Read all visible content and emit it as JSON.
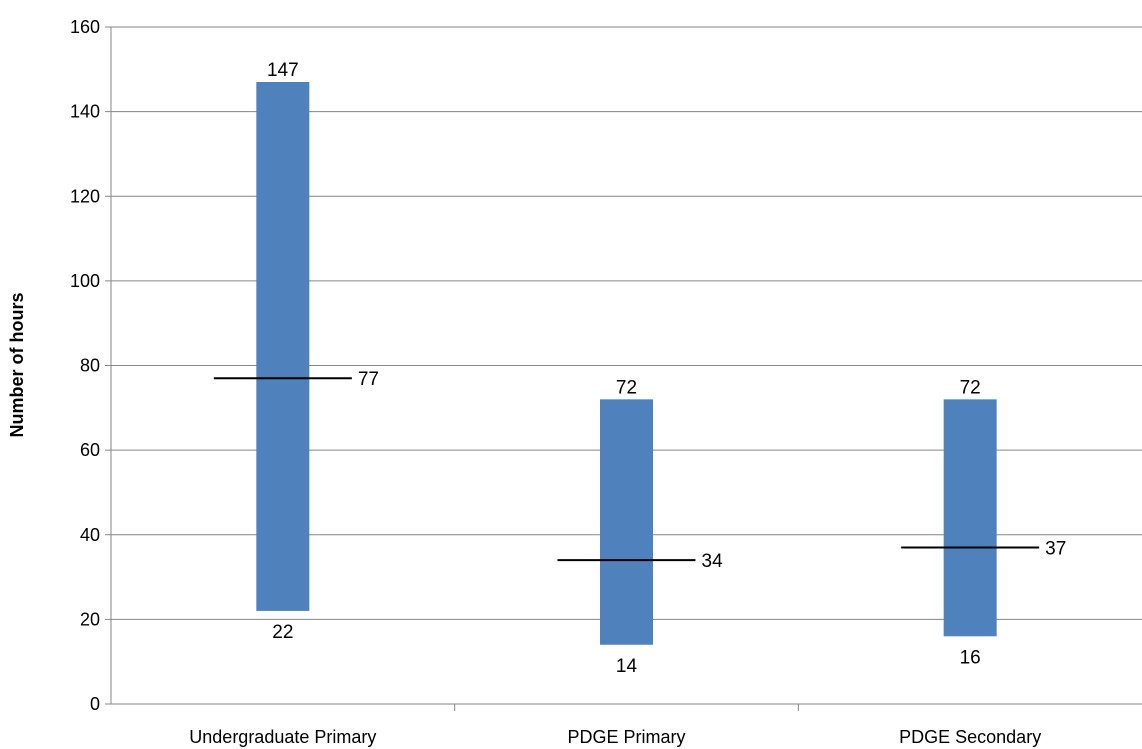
{
  "chart_data": {
    "type": "bar",
    "subtype": "floating-range-with-mean-marker",
    "categories": [
      "Undergraduate Primary",
      "PDGE Primary",
      "PDGE Secondary"
    ],
    "series": [
      {
        "values_min": [
          22,
          14,
          16
        ],
        "values_max": [
          147,
          72,
          72
        ],
        "values_mean": [
          77,
          34,
          37
        ]
      }
    ],
    "min_labels": [
      "22",
      "14",
      "16"
    ],
    "max_labels": [
      "147",
      "72",
      "72"
    ],
    "mean_labels": [
      "77",
      "34",
      "37"
    ],
    "title": "",
    "xlabel": "",
    "ylabel": "Number of hours",
    "ylim": [
      0,
      160
    ],
    "yticks": [
      0,
      20,
      40,
      60,
      80,
      100,
      120,
      140,
      160
    ],
    "ytick_labels": [
      "0",
      "20",
      "40",
      "60",
      "80",
      "100",
      "120",
      "140",
      "160"
    ],
    "grid": true,
    "legend": "none",
    "colors": {
      "bar": "#4F81BD",
      "gridline": "#868686",
      "axis": "#868686",
      "mean_marker": "#000000"
    }
  }
}
